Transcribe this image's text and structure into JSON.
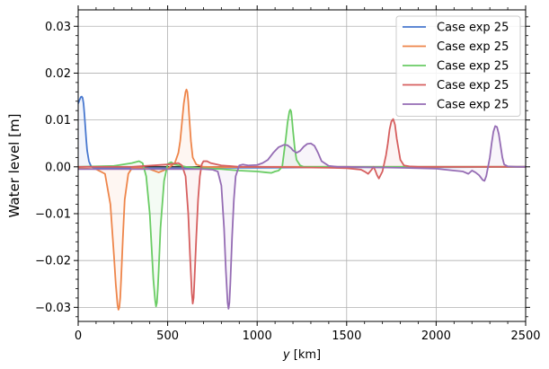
{
  "chart_data": {
    "type": "line",
    "title": "",
    "xlabel": "y [km]",
    "xlabel_var": "y",
    "xlabel_unit": " [km]",
    "ylabel": "Water level [m]",
    "xlim": [
      0,
      2500
    ],
    "ylim": [
      -0.033,
      0.0335
    ],
    "xticks": [
      0,
      500,
      1000,
      1500,
      2000,
      2500
    ],
    "xtick_labels": [
      "0",
      "500",
      "1000",
      "1500",
      "2000",
      "2500"
    ],
    "yticks": [
      -0.03,
      -0.02,
      -0.01,
      0.0,
      0.01,
      0.02,
      0.03
    ],
    "ytick_labels": [
      "−0.03",
      "−0.02",
      "−0.01",
      "0.00",
      "0.01",
      "0.02",
      "0.03"
    ],
    "grid": true,
    "legend_position": "top-right",
    "zero_line": true,
    "series": [
      {
        "name": "Case exp 25",
        "color": "#4878cf",
        "x": [
          0,
          5,
          10,
          15,
          20,
          25,
          30,
          35,
          40,
          45,
          50,
          60,
          70,
          80,
          90,
          100,
          120,
          150,
          200,
          300,
          400,
          500,
          600,
          800,
          1000,
          1500,
          2000,
          2500
        ],
        "y": [
          0.0135,
          0.014,
          0.0145,
          0.0149,
          0.015,
          0.0147,
          0.0135,
          0.0112,
          0.0085,
          0.0058,
          0.0035,
          0.0012,
          0.0003,
          -0.0001,
          -0.0002,
          -0.0003,
          -0.0003,
          -0.0003,
          -0.0003,
          -0.0003,
          -0.0003,
          -0.0003,
          -0.0003,
          -0.0002,
          -0.0002,
          -0.0001,
          -0.0001,
          0.0
        ]
      },
      {
        "name": "Case exp 25",
        "color": "#ee854a",
        "x": [
          0,
          100,
          150,
          180,
          200,
          210,
          220,
          225,
          230,
          235,
          240,
          250,
          260,
          280,
          300,
          350,
          400,
          450,
          500,
          540,
          560,
          570,
          580,
          590,
          600,
          605,
          610,
          615,
          620,
          630,
          640,
          660,
          700,
          800,
          1000,
          1500,
          2000,
          2500
        ],
        "y": [
          -0.0003,
          -0.0005,
          -0.0015,
          -0.008,
          -0.019,
          -0.025,
          -0.0295,
          -0.0305,
          -0.03,
          -0.028,
          -0.024,
          -0.015,
          -0.007,
          -0.0015,
          -0.0003,
          -0.0002,
          -0.0005,
          -0.0012,
          -0.0004,
          0.0008,
          0.003,
          0.0055,
          0.0095,
          0.0135,
          0.016,
          0.0165,
          0.016,
          0.014,
          0.011,
          0.0055,
          0.002,
          0.0005,
          0.0,
          -0.0001,
          0.0,
          0.0,
          0.0,
          0.0
        ]
      },
      {
        "name": "Case exp 25",
        "color": "#6acc64",
        "x": [
          0,
          200,
          300,
          340,
          360,
          380,
          400,
          410,
          420,
          430,
          435,
          440,
          445,
          450,
          460,
          480,
          500,
          520,
          540,
          600,
          700,
          800,
          900,
          1000,
          1050,
          1080,
          1100,
          1120,
          1140,
          1150,
          1160,
          1170,
          1180,
          1185,
          1190,
          1195,
          1200,
          1210,
          1220,
          1240,
          1260,
          1300,
          1400,
          1600,
          2000,
          2500
        ],
        "y": [
          0.0,
          0.0002,
          0.0008,
          0.0012,
          0.0008,
          -0.002,
          -0.01,
          -0.017,
          -0.024,
          -0.0285,
          -0.0298,
          -0.029,
          -0.026,
          -0.022,
          -0.013,
          -0.003,
          0.0006,
          0.001,
          0.0005,
          0.0,
          -0.0003,
          -0.0005,
          -0.0008,
          -0.001,
          -0.0012,
          -0.0013,
          -0.001,
          -0.0008,
          0.0,
          0.003,
          0.006,
          0.0095,
          0.0118,
          0.0122,
          0.0118,
          0.01,
          0.0078,
          0.004,
          0.0015,
          0.0003,
          0.0,
          0.0,
          0.0,
          0.0,
          0.0,
          0.0
        ]
      },
      {
        "name": "Case exp 25",
        "color": "#d65f5f",
        "x": [
          0,
          300,
          500,
          560,
          580,
          600,
          615,
          625,
          635,
          640,
          645,
          650,
          660,
          670,
          680,
          690,
          700,
          720,
          740,
          800,
          900,
          1000,
          1200,
          1400,
          1500,
          1580,
          1600,
          1620,
          1640,
          1650,
          1660,
          1670,
          1680,
          1700,
          1720,
          1730,
          1740,
          1750,
          1760,
          1770,
          1780,
          1800,
          1820,
          1850,
          1900,
          2000,
          2500
        ],
        "y": [
          0.0,
          0.0,
          0.0005,
          0.0008,
          0.0003,
          -0.002,
          -0.01,
          -0.019,
          -0.027,
          -0.0292,
          -0.028,
          -0.024,
          -0.015,
          -0.007,
          -0.002,
          0.0005,
          0.0012,
          0.0012,
          0.0008,
          0.0003,
          0.0,
          0.0,
          -0.0001,
          -0.0002,
          -0.0003,
          -0.0006,
          -0.001,
          -0.0015,
          -0.0006,
          0.0,
          -0.0008,
          -0.0018,
          -0.0025,
          -0.001,
          0.0025,
          0.005,
          0.008,
          0.0097,
          0.0102,
          0.009,
          0.006,
          0.0015,
          0.0003,
          0.0001,
          0.0,
          0.0,
          0.0
        ]
      },
      {
        "name": "Case exp 25",
        "color": "#956cb4",
        "x": [
          0,
          200,
          400,
          600,
          700,
          750,
          780,
          800,
          815,
          825,
          835,
          840,
          845,
          850,
          860,
          870,
          880,
          900,
          920,
          950,
          1000,
          1030,
          1060,
          1090,
          1120,
          1150,
          1170,
          1190,
          1200,
          1220,
          1240,
          1260,
          1280,
          1300,
          1320,
          1340,
          1360,
          1400,
          1450,
          1500,
          1800,
          2000,
          2100,
          2150,
          2180,
          2200,
          2220,
          2240,
          2260,
          2270,
          2280,
          2290,
          2300,
          2310,
          2320,
          2330,
          2340,
          2350,
          2360,
          2370,
          2380,
          2400,
          2450,
          2500
        ],
        "y": [
          -0.0005,
          -0.0005,
          -0.0005,
          -0.0005,
          -0.0005,
          -0.0006,
          -0.001,
          -0.004,
          -0.013,
          -0.022,
          -0.029,
          -0.0303,
          -0.029,
          -0.025,
          -0.015,
          -0.007,
          -0.002,
          0.0003,
          0.0005,
          0.0003,
          0.0004,
          0.0008,
          0.0015,
          0.003,
          0.0042,
          0.0047,
          0.0046,
          0.004,
          0.0035,
          0.003,
          0.0034,
          0.0043,
          0.0049,
          0.005,
          0.0045,
          0.003,
          0.0012,
          0.0002,
          0.0,
          0.0,
          -0.0002,
          -0.0004,
          -0.0008,
          -0.001,
          -0.0015,
          -0.0008,
          -0.0012,
          -0.0018,
          -0.0028,
          -0.003,
          -0.002,
          0.0,
          0.002,
          0.005,
          0.0075,
          0.0087,
          0.0085,
          0.007,
          0.0045,
          0.002,
          0.0005,
          0.0001,
          0.0,
          0.0
        ]
      }
    ]
  }
}
